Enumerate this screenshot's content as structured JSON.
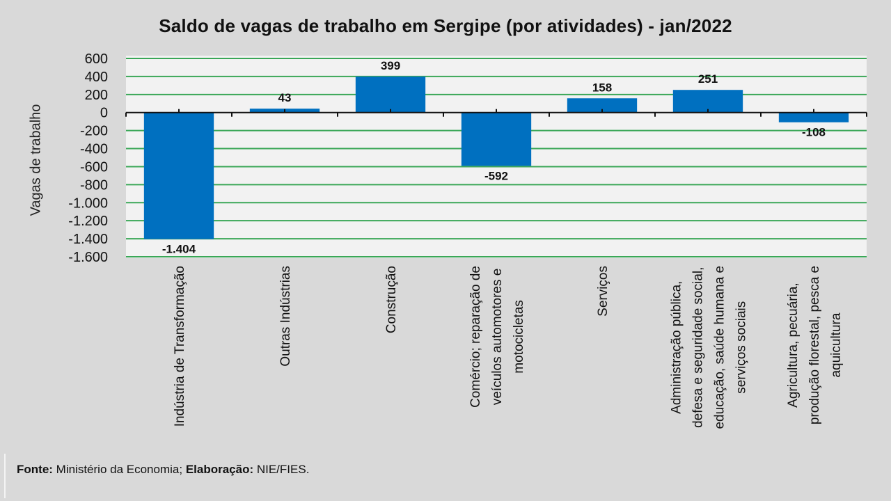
{
  "chart_data": {
    "type": "bar",
    "title": "Saldo de vagas de trabalho em Sergipe (por atividades) - jan/2022",
    "xlabel": "",
    "ylabel": "Vagas de trabalho",
    "ylim": [
      -1600,
      600
    ],
    "yticks": [
      600,
      400,
      200,
      0,
      -200,
      -400,
      -600,
      -800,
      -1000,
      -1200,
      -1400,
      -1600
    ],
    "ytick_labels": [
      "600",
      "400",
      "200",
      "0",
      "-200",
      "-400",
      "-600",
      "-800",
      "-1.000",
      "-1.200",
      "-1.400",
      "-1.600"
    ],
    "grid": true,
    "legend": "none",
    "categories": [
      [
        "Indústria de Transformação"
      ],
      [
        "Outras Indústrias"
      ],
      [
        "Construção"
      ],
      [
        "Comércio; reparação de",
        "veículos automotores e",
        "motocicletas"
      ],
      [
        "Serviços"
      ],
      [
        "Administração pública,",
        "defesa e seguridade social,",
        "educação, saúde humana e",
        "serviços sociais"
      ],
      [
        "Agricultura, pecuária,",
        "produção florestal, pesca e",
        "aquicultura"
      ]
    ],
    "values": [
      -1404,
      43,
      399,
      -592,
      158,
      251,
      -108
    ],
    "data_labels": [
      "-1.404",
      "43",
      "399",
      "-592",
      "158",
      "251",
      "-108"
    ],
    "colors": {
      "bar": "#0070c0",
      "grid": "#3aa757",
      "plot_bg": "#f2f2f2",
      "panel_bg": "#d9d9d9",
      "axis": "#111111"
    }
  },
  "footer": {
    "source_label": "Fonte:",
    "source_text": " Ministério da Economia; ",
    "elab_label": "Elaboração:",
    "elab_text": " NIE/FIES."
  }
}
